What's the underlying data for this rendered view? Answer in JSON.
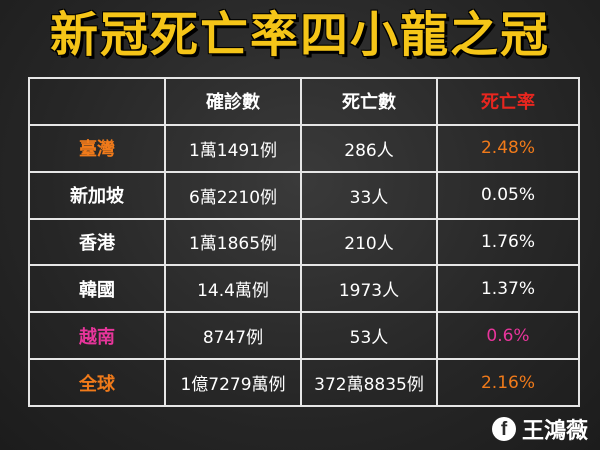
{
  "title": "新冠死亡率四小龍之冠",
  "table": {
    "headers": [
      "",
      "確診數",
      "死亡數",
      "死亡率"
    ],
    "rows": [
      {
        "region": "臺灣",
        "cases": "1萬1491例",
        "deaths": "286人",
        "rate": "2.48%"
      },
      {
        "region": "新加坡",
        "cases": "6萬2210例",
        "deaths": "33人",
        "rate": "0.05%"
      },
      {
        "region": "香港",
        "cases": "1萬1865例",
        "deaths": "210人",
        "rate": "1.76%"
      },
      {
        "region": "韓國",
        "cases": "14.4萬例",
        "deaths": "1973人",
        "rate": "1.37%"
      },
      {
        "region": "越南",
        "cases": "8747例",
        "deaths": "53人",
        "rate": "0.6%"
      },
      {
        "region": "全球",
        "cases": "1億7279萬例",
        "deaths": "372萬8835例",
        "rate": "2.16%"
      }
    ]
  },
  "credit": {
    "icon": "facebook-icon",
    "icon_glyph": "f",
    "author": "王鴻薇"
  },
  "colors": {
    "title": "#f5c518",
    "header_highlight": "#e8261f",
    "highlight_orange": "#f07a1a",
    "highlight_pink": "#e8359b",
    "text": "#ffffff"
  }
}
